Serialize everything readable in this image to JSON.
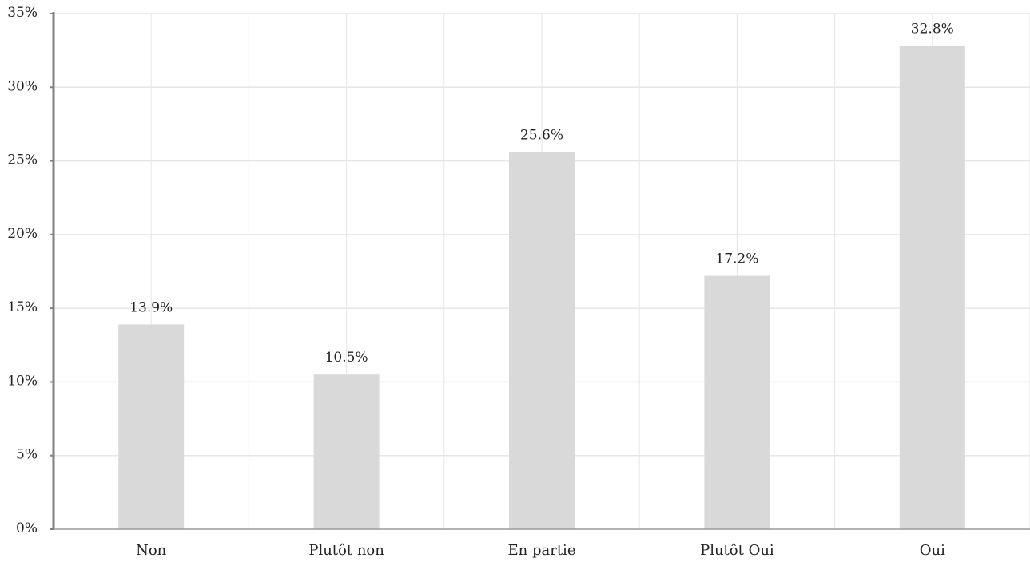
{
  "chart_data": {
    "type": "bar",
    "categories": [
      "Non",
      "Plutôt non",
      "En partie",
      "Plutôt Oui",
      "Oui"
    ],
    "values": [
      13.9,
      10.5,
      25.6,
      17.2,
      32.8
    ],
    "value_labels": [
      "13.9%",
      "10.5%",
      "25.6%",
      "17.2%",
      "32.8%"
    ],
    "ylim": [
      0,
      35
    ],
    "yticks": [
      0,
      5,
      10,
      15,
      20,
      25,
      30,
      35
    ],
    "ytick_labels": [
      "0%",
      "5%",
      "10%",
      "15%",
      "20%",
      "25%",
      "30%",
      "35%"
    ],
    "grid": true,
    "bar_color": "#d9d9d9",
    "grid_color": "#e6e6e6",
    "axis_color": "#808080"
  }
}
